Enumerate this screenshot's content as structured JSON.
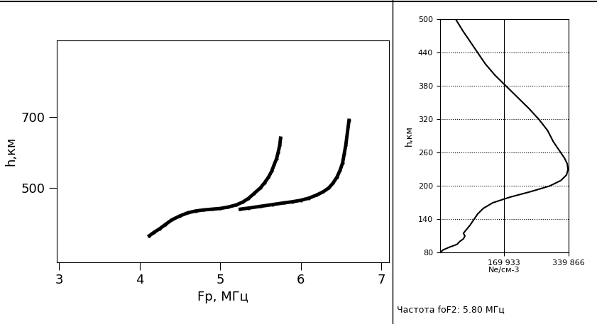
{
  "chart_data": [
    {
      "type": "scatter",
      "x_label": "Fp, МГц",
      "y_label": "h,км",
      "xlim": [
        2.97,
        7.1
      ],
      "xticks": [
        3,
        4,
        5,
        6,
        7
      ],
      "ylim": [
        290,
        915
      ],
      "yticks": [
        500,
        700
      ],
      "grid": false,
      "series": [
        {
          "color": "#000000",
          "marker": "o",
          "x": [
            4.12,
            4.18,
            4.25,
            4.32,
            4.4,
            4.5,
            4.6,
            4.7,
            4.8,
            4.9,
            5.0,
            5.1,
            5.2,
            5.28,
            5.35,
            5.42,
            5.5,
            5.55,
            5.6,
            5.64,
            5.67,
            5.7,
            5.72,
            5.74,
            5.75
          ],
          "values": [
            365,
            375,
            385,
            397,
            410,
            421,
            430,
            435,
            438,
            440,
            442,
            446,
            452,
            460,
            470,
            484,
            500,
            514,
            530,
            547,
            565,
            582,
            600,
            620,
            640
          ]
        },
        {
          "color": "#000000",
          "marker": "o",
          "x": [
            5.25,
            5.35,
            5.5,
            5.65,
            5.8,
            5.9,
            6.0,
            6.1,
            6.2,
            6.28,
            6.35,
            6.4,
            6.45,
            6.49,
            6.52,
            6.54,
            6.56,
            6.58,
            6.6
          ],
          "values": [
            440,
            443,
            448,
            453,
            458,
            461,
            465,
            471,
            480,
            489,
            500,
            513,
            530,
            550,
            570,
            595,
            620,
            655,
            690
          ]
        }
      ]
    },
    {
      "type": "line",
      "x_label": "Ne/см-3",
      "y_label": "h,км",
      "xlim": [
        0,
        339866
      ],
      "xticks": [
        {
          "value": 169933,
          "label": "169 933"
        },
        {
          "value": 339866,
          "label": "339 866"
        }
      ],
      "ylim": [
        80,
        500
      ],
      "yticks": [
        80,
        140,
        200,
        260,
        320,
        380,
        440,
        500
      ],
      "grid": true,
      "annotations": [
        "Частота foF2: 5.80 МГц"
      ],
      "series": [
        {
          "color": "#000000",
          "line_style": "solid",
          "x": [
            0,
            8000,
            25000,
            45000,
            52000,
            62000,
            66000,
            62000,
            68000,
            80000,
            90000,
            100000,
            115000,
            140000,
            185000,
            240000,
            290000,
            320000,
            335000,
            339000,
            337000,
            330000,
            320000,
            300000,
            285000,
            262000,
            235000,
            205000,
            175000,
            145000,
            120000,
            100000,
            80000,
            60000,
            42000
          ],
          "values": [
            80,
            85,
            90,
            95,
            100,
            105,
            110,
            115,
            120,
            130,
            140,
            150,
            160,
            170,
            180,
            190,
            200,
            210,
            220,
            230,
            240,
            250,
            260,
            280,
            300,
            320,
            340,
            360,
            380,
            400,
            420,
            440,
            460,
            480,
            500
          ]
        }
      ]
    }
  ]
}
